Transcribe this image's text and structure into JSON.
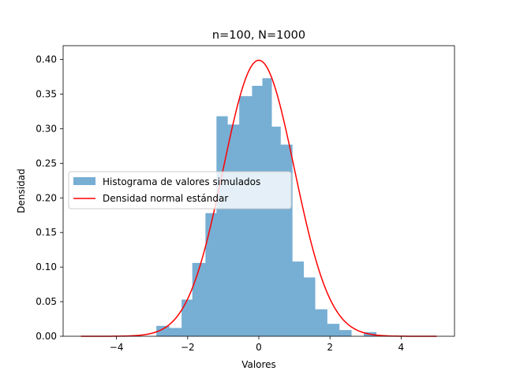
{
  "chart_data": {
    "type": "bar",
    "title": "n=100, N=1000",
    "xlabel": "Valores",
    "ylabel": "Densidad",
    "xlim": [
      -5.5,
      5.5
    ],
    "ylim": [
      0,
      0.42
    ],
    "xticks": [
      -4,
      -2,
      0,
      2,
      4
    ],
    "yticks": [
      0.0,
      0.05,
      0.1,
      0.15,
      0.2,
      0.25,
      0.3,
      0.35,
      0.4
    ],
    "grid": false,
    "legend_position": "center-left",
    "histogram": {
      "name": "Histograma de valores simulados",
      "color": "#77aed4",
      "bin_edges": [
        -2.88,
        -2.52,
        -2.17,
        -1.87,
        -1.5,
        -1.19,
        -0.88,
        -0.55,
        -0.19,
        0.1,
        0.36,
        0.61,
        0.94,
        1.26,
        1.58,
        1.92,
        2.26,
        2.6,
        2.95,
        3.3,
        3.64
      ],
      "values": [
        0.015,
        0.012,
        0.053,
        0.106,
        0.178,
        0.318,
        0.306,
        0.347,
        0.362,
        0.373,
        0.303,
        0.277,
        0.108,
        0.085,
        0.039,
        0.018,
        0.009,
        0.0,
        0.006,
        0.0
      ]
    },
    "curve": {
      "name": "Densidad normal estándar",
      "color": "#ff0000",
      "x_range": [
        -5,
        5
      ],
      "peak": 0.399
    },
    "x_tick_labels": [
      "−4",
      "−2",
      "0",
      "2",
      "4"
    ],
    "y_tick_labels": [
      "0.00",
      "0.05",
      "0.10",
      "0.15",
      "0.20",
      "0.25",
      "0.30",
      "0.35",
      "0.40"
    ]
  }
}
